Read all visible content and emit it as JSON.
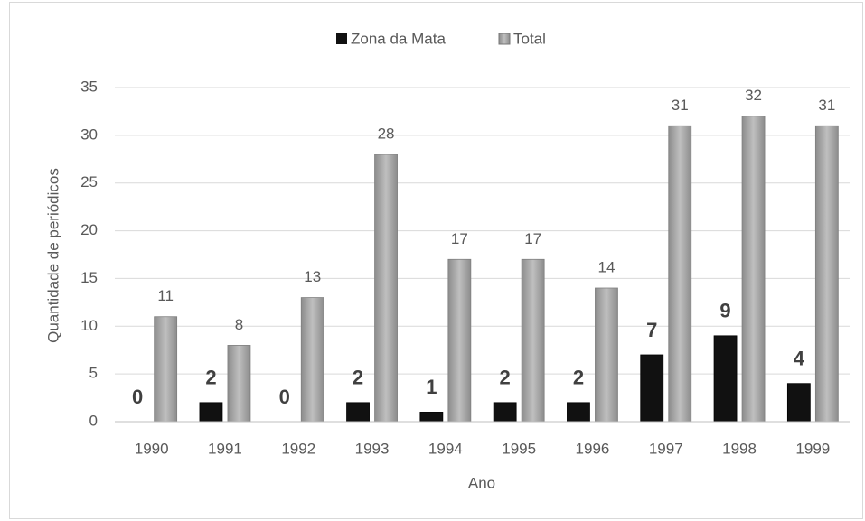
{
  "chart_data": {
    "type": "bar",
    "x_label": "Ano",
    "y_label": "Quantidade de periódicos",
    "categories": [
      "1990",
      "1991",
      "1992",
      "1993",
      "1994",
      "1995",
      "1996",
      "1997",
      "1998",
      "1999"
    ],
    "series": [
      {
        "name": "Zona da Mata",
        "color": "#111111",
        "values": [
          0,
          2,
          0,
          2,
          1,
          2,
          2,
          7,
          9,
          4
        ]
      },
      {
        "name": "Total",
        "color": "#a6a6a6",
        "values": [
          11,
          8,
          13,
          28,
          17,
          17,
          14,
          31,
          32,
          31
        ]
      }
    ],
    "ylim": [
      0,
      35
    ],
    "yticks": [
      0,
      5,
      10,
      15,
      20,
      25,
      30,
      35
    ],
    "grid": true,
    "legend": "top"
  }
}
